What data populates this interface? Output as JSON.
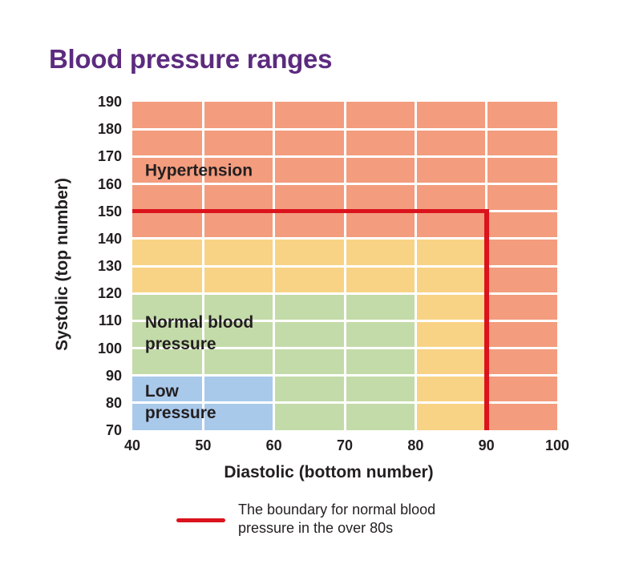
{
  "title": "Blood pressure ranges",
  "colors": {
    "title": "#5C2B7F",
    "text": "#231F20",
    "gridline": "#FFFFFF",
    "hypertension": "#F39C7E",
    "elevated": "#F8D385",
    "normal": "#C3DBA8",
    "low": "#A9C9EB",
    "boundary_line": "#DB131D"
  },
  "chart_data": {
    "type": "heatmap",
    "title": "Blood pressure ranges",
    "xlabel": "Diastolic (bottom number)",
    "ylabel": "Systolic (top number)",
    "xlim": [
      40,
      100
    ],
    "ylim": [
      70,
      190
    ],
    "x_ticks": [
      40,
      50,
      60,
      70,
      80,
      90,
      100
    ],
    "y_ticks": [
      190,
      180,
      170,
      160,
      150,
      140,
      130,
      120,
      110,
      100,
      90,
      80,
      70
    ],
    "grid": true,
    "legend_position": "bottom",
    "regions": [
      {
        "name": "hypertension",
        "label": "Hypertension",
        "color_key": "hypertension",
        "rects": [
          {
            "x1": 40,
            "x2": 100,
            "y1": 140,
            "y2": 190
          },
          {
            "x1": 90,
            "x2": 100,
            "y1": 70,
            "y2": 140
          }
        ]
      },
      {
        "name": "elevated",
        "label": "",
        "color_key": "elevated",
        "rects": [
          {
            "x1": 40,
            "x2": 90,
            "y1": 120,
            "y2": 140
          },
          {
            "x1": 80,
            "x2": 90,
            "y1": 70,
            "y2": 120
          }
        ]
      },
      {
        "name": "normal-blood-pressure",
        "label": "Normal blood pressure",
        "color_key": "normal",
        "rects": [
          {
            "x1": 40,
            "x2": 80,
            "y1": 90,
            "y2": 120
          },
          {
            "x1": 60,
            "x2": 80,
            "y1": 70,
            "y2": 90
          }
        ]
      },
      {
        "name": "low-pressure",
        "label": "Low pressure",
        "color_key": "low",
        "rects": [
          {
            "x1": 40,
            "x2": 60,
            "y1": 70,
            "y2": 90
          }
        ]
      }
    ],
    "region_labels": [
      {
        "text": "Hypertension",
        "x": 41.8,
        "y": 164.5
      },
      {
        "text": "Normal blood\npressure",
        "x": 41.8,
        "y": 105
      },
      {
        "text": "Low\npressure",
        "x": 41.8,
        "y": 80
      }
    ],
    "boundary_line": {
      "systolic": 150,
      "diastolic": 90
    }
  },
  "legend": {
    "swatch": "red-line",
    "text": "The boundary for normal blood pressure in the over 80s"
  }
}
